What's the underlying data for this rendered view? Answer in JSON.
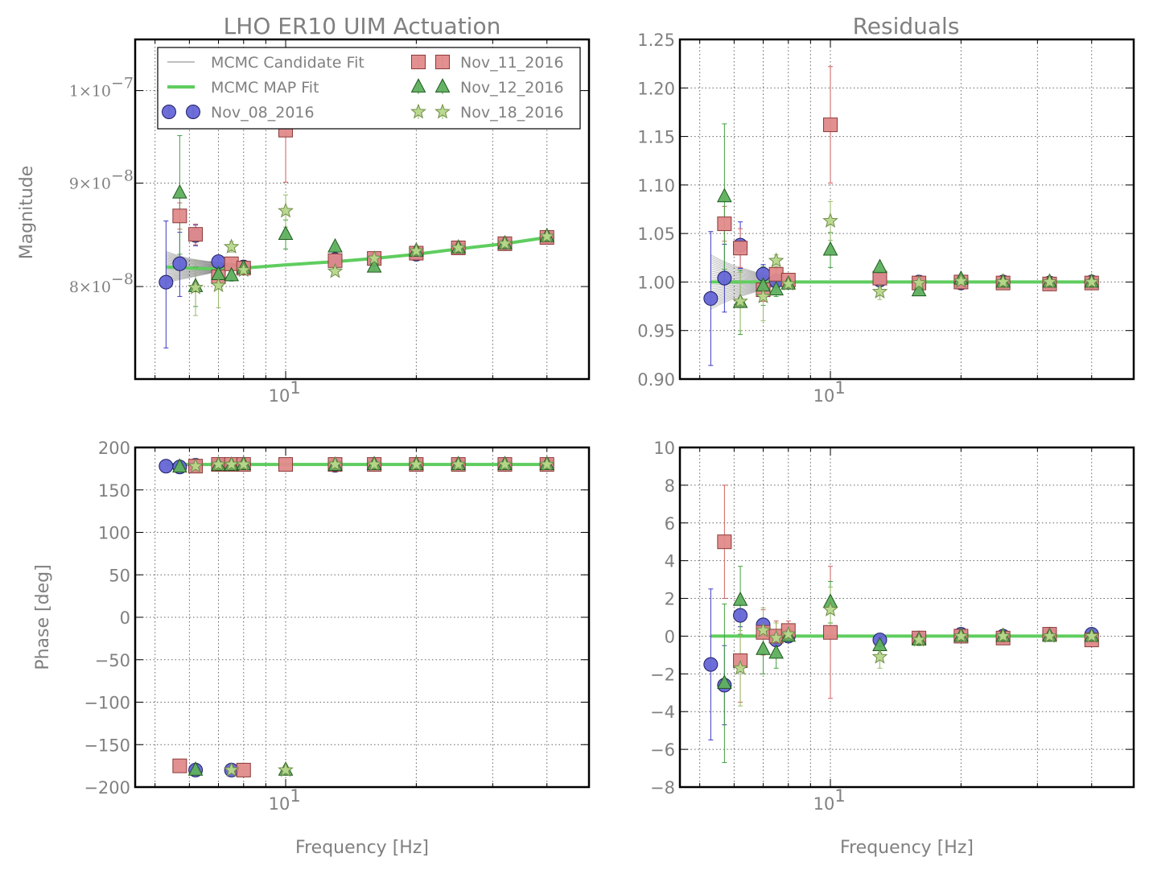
{
  "chart_data": [
    {
      "type": "scatter",
      "title": "LHO ER10 UIM Actuation",
      "xlabel": "",
      "ylabel": "Magnitude",
      "xscale": "log",
      "yscale": "log",
      "xlim": [
        4.5,
        50
      ],
      "ylim": [
        7.2e-08,
        1.06e-07
      ],
      "x_ticks": [
        {
          "value": 10,
          "label": "10",
          "exp": "1"
        }
      ],
      "y_ticks": [
        {
          "value": 8e-08,
          "label": "8×10",
          "exp": "−8"
        },
        {
          "value": 9e-08,
          "label": "9×10",
          "exp": "−8"
        },
        {
          "value": 1e-07,
          "label": "1×10",
          "exp": "−7"
        }
      ],
      "grid": true,
      "legend": {
        "position": "top-left",
        "entries": [
          "MCMC Candidate Fit",
          "MCMC MAP Fit",
          "Nov_08_2016",
          "Nov_11_2016",
          "Nov_12_2016",
          "Nov_18_2016"
        ]
      },
      "lines": [
        {
          "name": "MCMC MAP Fit",
          "x": [
            5.3,
            6,
            7,
            8,
            10,
            13,
            16,
            20,
            25,
            32,
            40
          ],
          "y": [
            8.18e-08,
            8.17e-08,
            8.16e-08,
            8.17e-08,
            8.2e-08,
            8.23e-08,
            8.26e-08,
            8.3e-08,
            8.35e-08,
            8.4e-08,
            8.46e-08
          ]
        }
      ],
      "series": [
        {
          "name": "Nov_08_2016",
          "x": [
            5.3,
            5.7,
            6.2,
            7.0,
            8.0,
            13.0,
            16.0,
            20.0,
            25.0,
            32.0,
            40.0
          ],
          "y": [
            8.04e-08,
            8.21e-08,
            8.48e-08,
            8.23e-08,
            8.18e-08,
            8.25e-08,
            8.25e-08,
            8.3e-08,
            8.36e-08,
            8.4e-08,
            8.46e-08
          ],
          "yerr": [
            5.8e-09,
            3e-09,
            1e-09,
            4e-10,
            3e-10,
            3e-10,
            3e-10,
            3e-10,
            3e-10,
            3e-10,
            3e-10
          ]
        },
        {
          "name": "Nov_11_2016",
          "x": [
            5.7,
            6.2,
            7.0,
            7.5,
            8.0,
            10.0,
            13.0,
            16.0,
            20.0,
            25.0,
            32.0,
            40.0
          ],
          "y": [
            8.67e-08,
            8.49e-08,
            8.09e-08,
            8.21e-08,
            8.17e-08,
            9.56e-08,
            8.24e-08,
            8.26e-08,
            8.31e-08,
            8.36e-08,
            8.4e-08,
            8.46e-08
          ],
          "yerr": [
            1.3e-09,
            1e-09,
            5e-10,
            4e-10,
            3e-10,
            5.5e-09,
            3e-10,
            3e-10,
            3e-10,
            3e-10,
            3e-10,
            3e-10
          ]
        },
        {
          "name": "Nov_12_2016",
          "x": [
            5.7,
            6.2,
            7.0,
            7.5,
            8.0,
            10.0,
            13.0,
            16.0,
            20.0,
            25.0,
            32.0,
            40.0
          ],
          "y": [
            8.9e-08,
            8e-08,
            8.11e-08,
            8.1e-08,
            8.17e-08,
            8.49e-08,
            8.37e-08,
            8.18e-08,
            8.33e-08,
            8.36e-08,
            8.4e-08,
            8.47e-08
          ],
          "yerr": [
            6e-09,
            1.8e-09,
            1e-09,
            5e-10,
            3e-10,
            1.4e-09,
            3e-10,
            3e-10,
            3e-10,
            3e-10,
            3e-10,
            3e-10
          ]
        },
        {
          "name": "Nov_18_2016",
          "x": [
            6.2,
            7.0,
            7.5,
            8.0,
            10.0,
            13.0,
            16.0,
            20.0,
            25.0,
            32.0,
            40.0
          ],
          "y": [
            7.99e-08,
            8.01e-08,
            8.37e-08,
            8.15e-08,
            8.72e-08,
            8.14e-08,
            8.26e-08,
            8.33e-08,
            8.36e-08,
            8.4e-08,
            8.47e-08
          ],
          "yerr": [
            2.5e-09,
            2e-09,
            5e-10,
            3e-10,
            1.6e-09,
            3e-10,
            3e-10,
            3e-10,
            3e-10,
            3e-10,
            3e-10
          ]
        }
      ]
    },
    {
      "type": "scatter",
      "title": "Residuals",
      "xlabel": "",
      "ylabel": "",
      "xscale": "log",
      "yscale": "linear",
      "xlim": [
        4.5,
        50
      ],
      "ylim": [
        0.9,
        1.25
      ],
      "x_ticks": [
        {
          "value": 10,
          "label": "10",
          "exp": "1"
        }
      ],
      "y_ticks": [
        {
          "value": 0.9,
          "label": "0.90"
        },
        {
          "value": 0.95,
          "label": "0.95"
        },
        {
          "value": 1.0,
          "label": "1.00"
        },
        {
          "value": 1.05,
          "label": "1.05"
        },
        {
          "value": 1.1,
          "label": "1.10"
        },
        {
          "value": 1.15,
          "label": "1.15"
        },
        {
          "value": 1.2,
          "label": "1.20"
        },
        {
          "value": 1.25,
          "label": "1.25"
        }
      ],
      "grid": true,
      "lines": [
        {
          "name": "MCMC MAP Fit",
          "x": [
            5.3,
            40.0
          ],
          "y": [
            1.0,
            1.0
          ]
        }
      ],
      "series": [
        {
          "name": "Nov_08_2016",
          "x": [
            5.3,
            5.7,
            6.2,
            7.0,
            7.5,
            13.0,
            16.0,
            20.0,
            25.0,
            32.0,
            40.0
          ],
          "y": [
            0.983,
            1.004,
            1.038,
            1.008,
            1.001,
            1.002,
            1.0,
            0.999,
            1.0,
            0.999,
            1.0
          ],
          "yerr": [
            0.069,
            0.035,
            0.024,
            0.01,
            0.004,
            0.003,
            0.003,
            0.003,
            0.003,
            0.003,
            0.003
          ]
        },
        {
          "name": "Nov_11_2016",
          "x": [
            5.7,
            6.2,
            7.0,
            7.5,
            8.0,
            10.0,
            13.0,
            16.0,
            20.0,
            25.0,
            32.0,
            40.0
          ],
          "y": [
            1.06,
            1.035,
            0.992,
            1.008,
            1.002,
            1.162,
            1.004,
            0.999,
            1.0,
            0.999,
            0.998,
            0.999
          ],
          "yerr": [
            0.018,
            0.02,
            0.012,
            0.006,
            0.004,
            0.06,
            0.003,
            0.003,
            0.003,
            0.003,
            0.003,
            0.003
          ]
        },
        {
          "name": "Nov_12_2016",
          "x": [
            5.7,
            6.2,
            7.0,
            7.5,
            8.0,
            10.0,
            13.0,
            16.0,
            20.0,
            25.0,
            32.0,
            40.0
          ],
          "y": [
            1.088,
            0.979,
            0.996,
            0.992,
            0.998,
            1.033,
            1.015,
            0.991,
            1.003,
            1.0,
            1.0,
            1.0
          ],
          "yerr": [
            0.075,
            0.033,
            0.02,
            0.007,
            0.004,
            0.018,
            0.004,
            0.003,
            0.003,
            0.003,
            0.003,
            0.003
          ]
        },
        {
          "name": "Nov_18_2016",
          "x": [
            6.2,
            7.0,
            7.5,
            8.0,
            10.0,
            13.0,
            16.0,
            20.0,
            25.0,
            32.0,
            40.0
          ],
          "y": [
            0.98,
            0.985,
            1.022,
            0.998,
            1.063,
            0.99,
            0.999,
            1.001,
            1.0,
            1.0,
            1.0
          ],
          "yerr": [
            0.03,
            0.025,
            0.006,
            0.004,
            0.02,
            0.008,
            0.003,
            0.003,
            0.003,
            0.003,
            0.003
          ]
        }
      ]
    },
    {
      "type": "scatter",
      "title": "",
      "xlabel": "Frequency [Hz]",
      "ylabel": "Phase [deg]",
      "xscale": "log",
      "yscale": "linear",
      "xlim": [
        4.5,
        50
      ],
      "ylim": [
        -200,
        200
      ],
      "x_ticks": [
        {
          "value": 10,
          "label": "10",
          "exp": "1"
        }
      ],
      "y_ticks": [
        {
          "value": -200,
          "label": "−200"
        },
        {
          "value": -150,
          "label": "−150"
        },
        {
          "value": -100,
          "label": "−100"
        },
        {
          "value": -50,
          "label": "−50"
        },
        {
          "value": 0,
          "label": "0"
        },
        {
          "value": 50,
          "label": "50"
        },
        {
          "value": 100,
          "label": "100"
        },
        {
          "value": 150,
          "label": "150"
        },
        {
          "value": 200,
          "label": "200"
        }
      ],
      "grid": true,
      "lines": [
        {
          "name": "MCMC MAP Fit",
          "x": [
            5.3,
            40.0
          ],
          "y": [
            180,
            180
          ]
        }
      ],
      "series": [
        {
          "name": "Nov_08_2016",
          "x": [
            5.3,
            5.7,
            6.2,
            7.0,
            8.0,
            13.0,
            16.0,
            20.0,
            25.0,
            32.0,
            40.0,
            6.2,
            7.5
          ],
          "y": [
            178,
            177,
            179,
            180,
            180,
            179,
            180,
            180,
            180,
            180,
            180,
            -180,
            -180
          ]
        },
        {
          "name": "Nov_11_2016",
          "x": [
            6.2,
            7.0,
            7.5,
            8.0,
            10.0,
            13.0,
            16.0,
            20.0,
            25.0,
            32.0,
            40.0,
            5.7,
            8.0
          ],
          "y": [
            178,
            180,
            180,
            180,
            180,
            180,
            180,
            180,
            180,
            180,
            180,
            -175,
            -180
          ]
        },
        {
          "name": "Nov_12_2016",
          "x": [
            5.7,
            7.0,
            7.5,
            8.0,
            13.0,
            16.0,
            20.0,
            25.0,
            32.0,
            40.0,
            6.2,
            10.0
          ],
          "y": [
            177,
            179,
            179,
            180,
            179,
            180,
            180,
            180,
            180,
            180,
            -180,
            -180
          ]
        },
        {
          "name": "Nov_18_2016",
          "x": [
            6.2,
            7.0,
            7.5,
            8.0,
            13.0,
            16.0,
            20.0,
            25.0,
            32.0,
            40.0,
            7.5,
            10.0
          ],
          "y": [
            178,
            180,
            180,
            180,
            180,
            180,
            180,
            180,
            180,
            180,
            -180,
            -180
          ]
        }
      ]
    },
    {
      "type": "scatter",
      "title": "",
      "xlabel": "Frequency [Hz]",
      "ylabel": "",
      "xscale": "log",
      "yscale": "linear",
      "xlim": [
        4.5,
        50
      ],
      "ylim": [
        -8,
        10
      ],
      "x_ticks": [
        {
          "value": 10,
          "label": "10",
          "exp": "1"
        }
      ],
      "y_ticks": [
        {
          "value": -8,
          "label": "−8"
        },
        {
          "value": -6,
          "label": "−6"
        },
        {
          "value": -4,
          "label": "−4"
        },
        {
          "value": -2,
          "label": "−2"
        },
        {
          "value": 0,
          "label": "0"
        },
        {
          "value": 2,
          "label": "2"
        },
        {
          "value": 4,
          "label": "4"
        },
        {
          "value": 6,
          "label": "6"
        },
        {
          "value": 8,
          "label": "8"
        },
        {
          "value": 10,
          "label": "10"
        }
      ],
      "grid": true,
      "lines": [
        {
          "name": "MCMC MAP Fit",
          "x": [
            5.3,
            40.0
          ],
          "y": [
            0,
            0
          ]
        }
      ],
      "series": [
        {
          "name": "Nov_08_2016",
          "x": [
            5.3,
            5.7,
            6.2,
            7.0,
            7.5,
            8.0,
            13.0,
            16.0,
            20.0,
            25.0,
            32.0,
            40.0
          ],
          "y": [
            -1.5,
            -2.6,
            1.1,
            0.6,
            -0.2,
            0.0,
            -0.2,
            -0.1,
            0.1,
            0.0,
            0.1,
            0.1
          ],
          "yerr": [
            4.0,
            2.1,
            0.6,
            0.3,
            0.3,
            0.2,
            0.2,
            0.2,
            0.2,
            0.2,
            0.2,
            0.2
          ]
        },
        {
          "name": "Nov_11_2016",
          "x": [
            5.7,
            6.2,
            7.0,
            7.5,
            8.0,
            10.0,
            16.0,
            20.0,
            25.0,
            32.0,
            40.0
          ],
          "y": [
            5.0,
            -1.3,
            0.2,
            0.0,
            0.3,
            0.2,
            -0.1,
            0.0,
            -0.1,
            0.1,
            -0.2
          ],
          "yerr": [
            3.0,
            2.2,
            1.2,
            0.8,
            0.5,
            3.5,
            0.3,
            0.2,
            0.2,
            0.2,
            0.2
          ]
        },
        {
          "name": "Nov_12_2016",
          "x": [
            5.7,
            6.2,
            7.0,
            7.5,
            8.0,
            10.0,
            13.0,
            16.0,
            20.0,
            25.0,
            32.0,
            40.0
          ],
          "y": [
            -2.5,
            1.9,
            -0.7,
            -0.9,
            0.0,
            1.8,
            -0.5,
            -0.2,
            0.0,
            0.0,
            0.0,
            0.0
          ],
          "yerr": [
            4.2,
            1.8,
            1.3,
            0.8,
            0.3,
            1.1,
            0.4,
            0.3,
            0.2,
            0.2,
            0.2,
            0.2
          ]
        },
        {
          "name": "Nov_18_2016",
          "x": [
            6.2,
            7.0,
            7.5,
            8.0,
            10.0,
            13.0,
            16.0,
            20.0,
            25.0,
            32.0,
            40.0
          ],
          "y": [
            -1.7,
            0.3,
            -0.1,
            0.1,
            1.4,
            -1.1,
            -0.2,
            0.0,
            0.0,
            0.0,
            0.0
          ],
          "yerr": [
            2.0,
            1.2,
            0.8,
            0.4,
            1.2,
            0.6,
            0.3,
            0.2,
            0.2,
            0.2,
            0.2
          ]
        }
      ]
    }
  ],
  "series_styles": [
    {
      "name": "Nov_08_2016",
      "marker": "circle",
      "fill": "#6666d6",
      "stroke": "#1e1e66",
      "err": "#3a3ac0"
    },
    {
      "name": "Nov_11_2016",
      "marker": "square",
      "fill": "#e08a8a",
      "stroke": "#8a3a3a",
      "err": "#d06060"
    },
    {
      "name": "Nov_12_2016",
      "marker": "triangle",
      "fill": "#5fb05f",
      "stroke": "#1e5a1e",
      "err": "#40a040"
    },
    {
      "name": "Nov_18_2016",
      "marker": "star",
      "fill": "#b7d88a",
      "stroke": "#6f8c4a",
      "err": "#9aba6a"
    }
  ],
  "fit_colors": {
    "map": "#5fcd5f",
    "candidate": "#000000"
  }
}
